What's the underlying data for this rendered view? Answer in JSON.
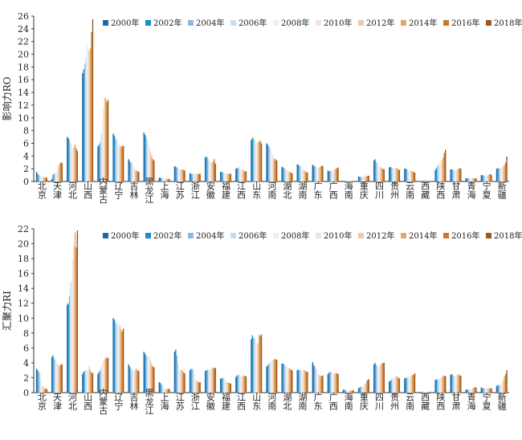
{
  "colors": [
    "#1f6aa5",
    "#1a8ec7",
    "#8fb8e0",
    "#c6ddf1",
    "#f0f0f0",
    "#f6e3d6",
    "#f2c7a8",
    "#e2a869",
    "#c77a2a",
    "#9b5a20"
  ],
  "chart_data": [
    {
      "type": "bar",
      "ylabel": "影响力RO",
      "ylim": [
        0,
        26
      ],
      "yticks": [
        0,
        2,
        4,
        6,
        8,
        10,
        12,
        14,
        16,
        18,
        20,
        22,
        24,
        26
      ],
      "legend": "top-right",
      "categories": [
        "北京",
        "天津",
        "河北",
        "山西",
        "内蒙古",
        "辽宁",
        "吉林",
        "黑龙江",
        "上海",
        "江苏",
        "浙江",
        "安徽",
        "福建",
        "江西",
        "山东",
        "河南",
        "湖北",
        "湖南",
        "广东",
        "广西",
        "海南",
        "重庆",
        "四川",
        "贵州",
        "云南",
        "西藏",
        "陕西",
        "甘肃",
        "青海",
        "宁夏",
        "新疆"
      ],
      "series": [
        {
          "name": "2000年",
          "values": [
            1.5,
            0.4,
            7.0,
            17.0,
            5.5,
            7.5,
            3.5,
            7.7,
            0.6,
            2.4,
            1.3,
            3.8,
            1.5,
            2.0,
            6.5,
            6.0,
            2.3,
            2.7,
            2.6,
            1.7,
            0.1,
            0.8,
            3.3,
            2.2,
            2.0,
            0.0,
            1.8,
            1.9,
            0.5,
            1.0,
            2.0
          ]
        },
        {
          "name": "2002年",
          "values": [
            1.2,
            1.1,
            6.8,
            17.6,
            5.8,
            7.2,
            3.2,
            7.3,
            0.6,
            2.3,
            1.2,
            3.9,
            1.5,
            2.1,
            6.9,
            5.8,
            2.2,
            2.6,
            2.5,
            1.6,
            0.1,
            0.7,
            3.5,
            2.3,
            2.0,
            0.0,
            2.1,
            1.9,
            0.5,
            1.0,
            2.1
          ]
        },
        {
          "name": "2004年",
          "values": [
            1.0,
            1.2,
            6.5,
            18.5,
            6.2,
            6.8,
            3.0,
            7.0,
            0.5,
            2.2,
            1.2,
            3.7,
            1.4,
            2.2,
            6.7,
            5.5,
            2.1,
            2.5,
            2.4,
            1.7,
            0.1,
            0.7,
            3.0,
            2.2,
            1.9,
            0.0,
            2.4,
            1.8,
            0.5,
            0.9,
            2.0
          ]
        },
        {
          "name": "2006年",
          "values": [
            0.9,
            1.3,
            6.0,
            19.5,
            7.5,
            6.5,
            2.8,
            6.5,
            0.5,
            2.1,
            1.2,
            3.5,
            1.4,
            2.0,
            6.5,
            5.2,
            2.0,
            2.4,
            2.3,
            1.7,
            0.1,
            0.8,
            2.9,
            2.1,
            1.8,
            0.0,
            2.7,
            1.8,
            0.5,
            0.9,
            2.1
          ]
        },
        {
          "name": "2008年",
          "values": [
            0.8,
            1.5,
            5.5,
            21.5,
            9.5,
            6.0,
            2.5,
            6.0,
            0.4,
            2.0,
            1.2,
            3.2,
            1.3,
            1.9,
            6.3,
            4.8,
            1.9,
            2.2,
            2.2,
            1.8,
            0.1,
            0.8,
            2.7,
            2.0,
            1.8,
            0.0,
            3.0,
            1.8,
            0.5,
            0.9,
            2.2
          ]
        },
        {
          "name": "2010年",
          "values": [
            0.7,
            2.2,
            5.3,
            21.0,
            11.5,
            5.8,
            2.2,
            5.3,
            0.4,
            1.9,
            1.2,
            3.0,
            1.3,
            1.9,
            6.2,
            4.2,
            1.7,
            2.0,
            2.1,
            1.8,
            0.1,
            0.8,
            2.4,
            2.1,
            1.7,
            0.0,
            3.2,
            1.8,
            0.5,
            1.0,
            2.3
          ]
        },
        {
          "name": "2012年",
          "values": [
            0.7,
            2.5,
            5.5,
            20.5,
            13.2,
            5.6,
            1.8,
            4.5,
            0.4,
            1.9,
            1.2,
            3.0,
            1.2,
            1.8,
            6.1,
            3.8,
            1.6,
            1.8,
            2.2,
            1.9,
            0.1,
            0.8,
            2.2,
            2.1,
            1.7,
            0.0,
            3.4,
            1.9,
            0.5,
            1.0,
            2.4
          ]
        },
        {
          "name": "2014年",
          "values": [
            0.6,
            2.8,
            5.8,
            21.0,
            13.0,
            5.5,
            1.7,
            4.0,
            0.4,
            1.9,
            1.2,
            3.2,
            1.2,
            1.7,
            6.3,
            3.5,
            1.5,
            1.6,
            2.3,
            2.0,
            0.1,
            0.8,
            2.1,
            2.1,
            1.6,
            0.0,
            3.8,
            2.0,
            0.5,
            1.1,
            2.6
          ]
        },
        {
          "name": "2016年",
          "values": [
            0.6,
            3.0,
            5.2,
            23.5,
            12.5,
            5.5,
            1.6,
            3.5,
            0.4,
            1.8,
            1.2,
            3.5,
            1.2,
            1.6,
            6.4,
            3.5,
            1.4,
            1.5,
            2.5,
            2.1,
            0.1,
            0.9,
            2.0,
            1.9,
            1.5,
            0.0,
            4.5,
            2.1,
            0.5,
            1.2,
            3.0
          ]
        },
        {
          "name": "2018年",
          "values": [
            0.6,
            2.9,
            4.8,
            25.5,
            12.8,
            5.6,
            1.5,
            3.3,
            0.4,
            1.7,
            1.2,
            2.8,
            1.2,
            1.6,
            6.0,
            3.3,
            1.3,
            1.4,
            2.4,
            2.2,
            0.1,
            0.9,
            1.9,
            1.8,
            1.4,
            0.0,
            5.0,
            2.0,
            0.5,
            1.0,
            3.9
          ]
        }
      ]
    },
    {
      "type": "bar",
      "ylabel": "汇聚力RI",
      "ylim": [
        0,
        22
      ],
      "yticks": [
        0,
        2,
        4,
        6,
        8,
        10,
        12,
        14,
        16,
        18,
        20,
        22
      ],
      "legend": "top-right",
      "categories": [
        "北京",
        "天津",
        "河北",
        "山西",
        "内蒙古",
        "辽宁",
        "吉林",
        "黑龙江",
        "上海",
        "江苏",
        "浙江",
        "安徽",
        "福建",
        "江西",
        "山东",
        "河南",
        "湖北",
        "湖南",
        "广东",
        "广西",
        "海南",
        "重庆",
        "四川",
        "贵州",
        "云南",
        "西藏",
        "陕西",
        "甘肃",
        "青海",
        "宁夏",
        "新疆"
      ],
      "series": [
        {
          "name": "2000年",
          "values": [
            3.2,
            4.8,
            11.8,
            2.5,
            2.5,
            10.0,
            3.8,
            5.5,
            1.4,
            5.5,
            3.0,
            2.9,
            1.9,
            2.1,
            7.2,
            3.5,
            3.9,
            3.0,
            4.1,
            2.5,
            0.4,
            0.6,
            3.8,
            1.5,
            1.9,
            0.1,
            1.7,
            2.4,
            0.4,
            0.7,
            0.9
          ]
        },
        {
          "name": "2002年",
          "values": [
            3.0,
            5.0,
            12.0,
            2.8,
            2.8,
            9.8,
            3.5,
            5.2,
            1.3,
            5.8,
            3.2,
            3.0,
            1.9,
            2.3,
            7.7,
            3.7,
            3.9,
            3.1,
            3.7,
            2.7,
            0.4,
            0.7,
            4.0,
            1.6,
            2.0,
            0.1,
            1.8,
            2.5,
            0.4,
            0.6,
            1.0
          ]
        },
        {
          "name": "2004年",
          "values": [
            2.8,
            4.6,
            13.0,
            2.9,
            3.0,
            9.5,
            3.2,
            5.0,
            1.1,
            5.0,
            3.1,
            3.1,
            2.0,
            2.4,
            7.4,
            3.9,
            3.8,
            3.0,
            3.5,
            2.8,
            0.3,
            0.8,
            3.7,
            1.8,
            2.0,
            0.1,
            1.7,
            2.3,
            0.4,
            0.6,
            1.0
          ]
        },
        {
          "name": "2006年",
          "values": [
            2.6,
            4.4,
            14.8,
            3.0,
            3.5,
            9.2,
            3.0,
            4.8,
            0.9,
            4.0,
            3.3,
            3.0,
            1.9,
            2.4,
            7.3,
            4.0,
            3.7,
            3.1,
            3.2,
            2.8,
            0.3,
            0.8,
            3.5,
            1.9,
            2.1,
            0.1,
            1.8,
            2.2,
            0.5,
            0.6,
            1.1
          ]
        },
        {
          "name": "2008年",
          "values": [
            1.5,
            4.2,
            15.5,
            3.1,
            4.0,
            9.0,
            3.0,
            4.6,
            0.6,
            3.2,
            2.6,
            3.1,
            1.8,
            2.3,
            7.0,
            4.2,
            3.6,
            3.0,
            3.0,
            2.7,
            0.3,
            0.9,
            3.3,
            2.0,
            2.1,
            0.1,
            1.9,
            2.2,
            0.5,
            0.6,
            1.3
          ]
        },
        {
          "name": "2010年",
          "values": [
            1.0,
            3.9,
            18.0,
            3.2,
            4.3,
            9.3,
            3.0,
            4.9,
            0.5,
            3.0,
            1.8,
            3.2,
            1.5,
            2.2,
            6.5,
            4.3,
            3.5,
            3.0,
            2.6,
            2.6,
            0.3,
            1.0,
            3.6,
            2.1,
            2.2,
            0.1,
            2.0,
            2.3,
            0.5,
            0.6,
            1.5
          ]
        },
        {
          "name": "2012年",
          "values": [
            0.8,
            3.7,
            19.8,
            3.5,
            4.5,
            9.0,
            3.1,
            4.3,
            0.4,
            3.1,
            1.6,
            3.3,
            1.4,
            2.2,
            6.7,
            4.4,
            3.3,
            3.0,
            2.4,
            2.5,
            0.3,
            1.2,
            3.8,
            2.2,
            2.3,
            0.1,
            2.1,
            2.4,
            0.6,
            0.6,
            1.8
          ]
        },
        {
          "name": "2014年",
          "values": [
            0.6,
            3.6,
            21.5,
            3.0,
            4.8,
            8.5,
            3.2,
            3.8,
            0.5,
            3.0,
            1.5,
            3.4,
            1.3,
            2.3,
            7.8,
            4.5,
            3.2,
            3.0,
            2.3,
            2.6,
            0.3,
            1.5,
            3.9,
            2.2,
            2.4,
            0.1,
            2.2,
            2.5,
            0.7,
            0.6,
            2.2
          ]
        },
        {
          "name": "2016年",
          "values": [
            0.5,
            3.8,
            19.5,
            2.7,
            4.6,
            8.2,
            3.0,
            3.5,
            0.5,
            2.7,
            1.4,
            3.3,
            1.3,
            2.2,
            7.6,
            4.5,
            3.1,
            2.8,
            2.2,
            2.6,
            0.3,
            1.7,
            4.0,
            2.0,
            2.4,
            0.1,
            2.3,
            2.3,
            0.7,
            0.5,
            2.5
          ]
        },
        {
          "name": "2018年",
          "values": [
            0.5,
            3.8,
            21.8,
            2.6,
            4.7,
            8.6,
            2.9,
            3.4,
            0.5,
            2.6,
            1.4,
            3.3,
            1.2,
            2.2,
            7.8,
            4.4,
            3.0,
            2.8,
            2.3,
            2.5,
            0.3,
            1.8,
            4.0,
            1.9,
            2.6,
            0.1,
            2.2,
            2.3,
            0.7,
            0.6,
            3.0
          ]
        }
      ]
    }
  ]
}
